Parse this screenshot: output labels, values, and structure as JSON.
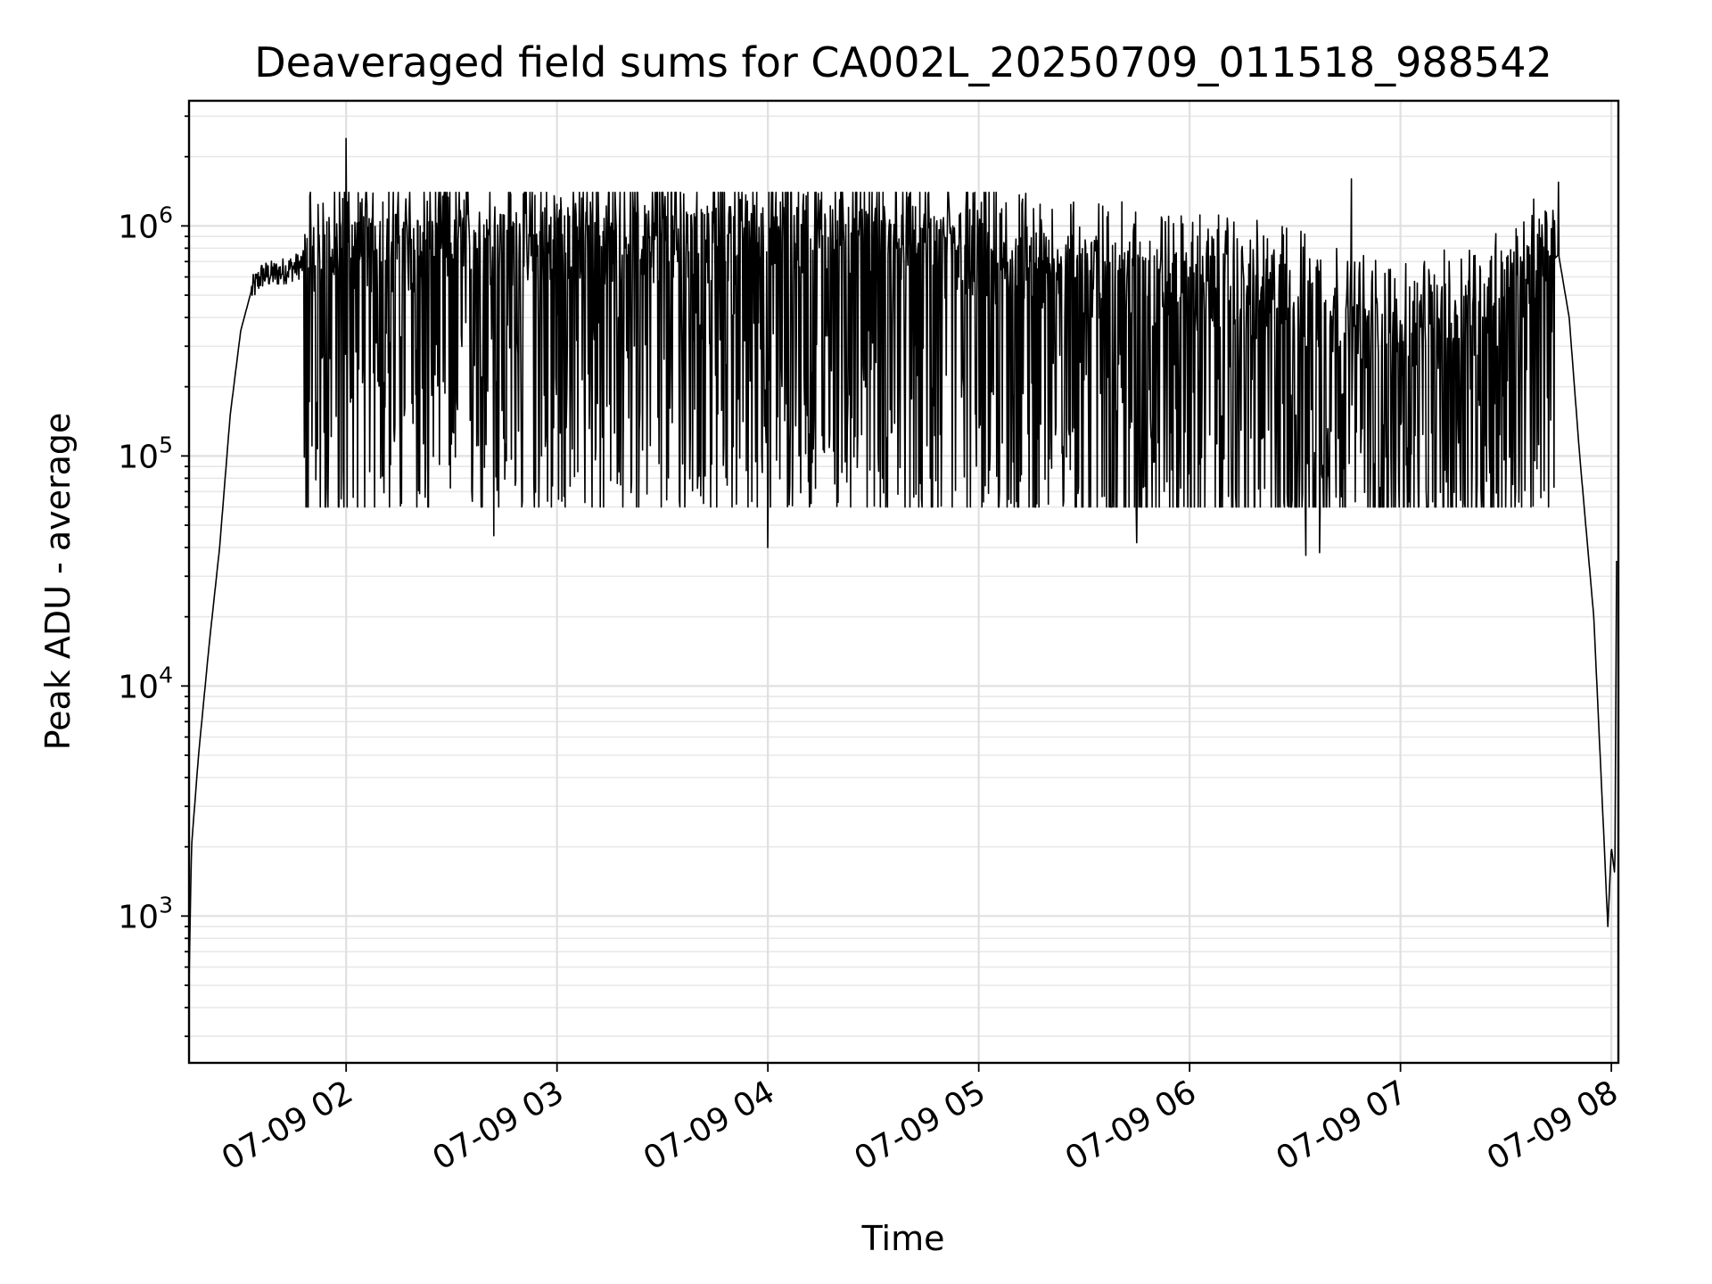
{
  "chart_data": {
    "type": "line",
    "title": "Deaveraged field sums for CA002L_20250709_011518_988542",
    "xlabel": "Time",
    "ylabel": "Peak ADU - average",
    "yscale": "log",
    "ylim": [
      230,
      3500000
    ],
    "xlim": [
      "2025-07-09 01:15:18",
      "2025-07-09 08:02:00"
    ],
    "grid": "on (major and minor)",
    "legend": "none",
    "x_tick_labels": [
      "07-09 02",
      "07-09 03",
      "07-09 04",
      "07-09 05",
      "07-09 06",
      "07-09 07",
      "07-09 08"
    ],
    "y_tick_labels": [
      {
        "base": "10",
        "exp": "3"
      },
      {
        "base": "10",
        "exp": "4"
      },
      {
        "base": "10",
        "exp": "5"
      },
      {
        "base": "10",
        "exp": "6"
      }
    ],
    "series": [
      {
        "color": "#000000",
        "profile": [
          {
            "t": "01:15:18",
            "v": 500
          },
          {
            "t": "01:16",
            "v": 2000
          },
          {
            "t": "01:18",
            "v": 5000
          },
          {
            "t": "01:21",
            "v": 15000
          },
          {
            "t": "01:24",
            "v": 40000
          },
          {
            "t": "01:27",
            "v": 150000
          },
          {
            "t": "01:30",
            "v": 350000
          },
          {
            "t": "01:33",
            "v": 520000
          },
          {
            "t": "01:36",
            "v": 610000
          },
          {
            "t": "01:40",
            "v": 620000
          },
          {
            "t": "01:50",
            "v": 700000
          },
          {
            "t": "02:30",
            "v": 800000
          },
          {
            "t": "03:30",
            "v": 850000
          },
          {
            "t": "04:30",
            "v": 800000
          },
          {
            "t": "05:30",
            "v": 600000
          },
          {
            "t": "06:30",
            "v": 450000
          },
          {
            "t": "07:00",
            "v": 300000
          },
          {
            "t": "07:30",
            "v": 450000
          },
          {
            "t": "07:45",
            "v": 750000
          },
          {
            "t": "07:48",
            "v": 400000
          },
          {
            "t": "07:51",
            "v": 100000
          },
          {
            "t": "07:55",
            "v": 20000
          },
          {
            "t": "07:58",
            "v": 2000
          },
          {
            "t": "07:59",
            "v": 900
          },
          {
            "t": "08:00",
            "v": 2000
          },
          {
            "t": "08:01",
            "v": 1500
          },
          {
            "t": "08:01:30",
            "v": 35000
          }
        ],
        "spikes_high": [
          {
            "t": "02:00",
            "v": 2400000
          },
          {
            "t": "06:46",
            "v": 1600000
          },
          {
            "t": "07:45",
            "v": 1550000
          }
        ],
        "dips_low": [
          {
            "t": "02:42",
            "v": 45000
          },
          {
            "t": "04:00",
            "v": 40000
          },
          {
            "t": "05:45",
            "v": 42000
          },
          {
            "t": "06:33",
            "v": 37000
          },
          {
            "t": "06:37",
            "v": 38000
          },
          {
            "t": "07:37",
            "v": 130000
          }
        ],
        "oscillation_band": {
          "from": "01:48",
          "to": "07:44",
          "low": 60000,
          "high": 1400000
        }
      }
    ]
  }
}
